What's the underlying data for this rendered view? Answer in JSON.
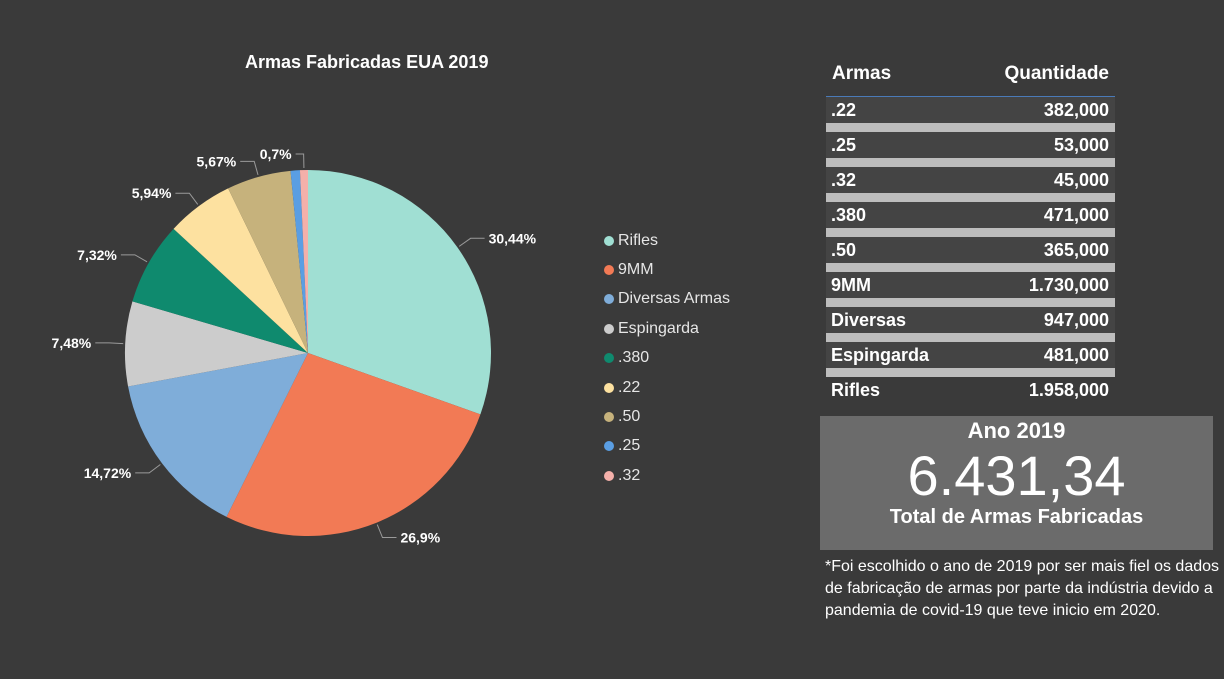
{
  "chart_data": {
    "type": "pie",
    "title": "Armas Fabricadas EUA 2019",
    "slices": [
      {
        "name": "Rifles",
        "value": 30.44,
        "label": "30,44%",
        "color": "#a0dfd3"
      },
      {
        "name": "9MM",
        "value": 26.9,
        "label": "26,9%",
        "color": "#f27a55"
      },
      {
        "name": "Diversas Armas",
        "value": 14.72,
        "label": "14,72%",
        "color": "#7fadd9"
      },
      {
        "name": "Espingarda",
        "value": 7.48,
        "label": "7,48%",
        "color": "#cccccc"
      },
      {
        "name": ".380",
        "value": 7.32,
        "label": "7,32%",
        "color": "#0f8a6e"
      },
      {
        "name": ".22",
        "value": 5.94,
        "label": "5,94%",
        "color": "#fde1a0"
      },
      {
        "name": ".50",
        "value": 5.67,
        "label": "5,67%",
        "color": "#c6b27c"
      },
      {
        "name": ".25",
        "value": 0.82,
        "label": "",
        "color": "#5a9ee3"
      },
      {
        "name": ".32",
        "value": 0.7,
        "label": "0,7%",
        "color": "#f4b0aa"
      }
    ],
    "legend_position": "right"
  },
  "table": {
    "headers": [
      "Armas",
      "Quantidade"
    ],
    "rows": [
      {
        "arma": ".22",
        "quantidade": "382,000"
      },
      {
        "arma": ".25",
        "quantidade": "53,000"
      },
      {
        "arma": ".32",
        "quantidade": "45,000"
      },
      {
        "arma": ".380",
        "quantidade": "471,000"
      },
      {
        "arma": ".50",
        "quantidade": "365,000"
      },
      {
        "arma": "9MM",
        "quantidade": "1.730,000"
      },
      {
        "arma": "Diversas",
        "quantidade": "947,000"
      },
      {
        "arma": "Espingarda",
        "quantidade": "481,000"
      },
      {
        "arma": "Rifles",
        "quantidade": "1.958,000"
      }
    ]
  },
  "total": {
    "year_label": "Ano 2019",
    "value": "6.431,34",
    "caption": "Total de Armas Fabricadas"
  },
  "footnote": "*Foi escolhido o ano de 2019 por ser mais fiel os dados de fabricação de armas por parte da indústria devido a pandemia de covid-19 que teve inicio em 2020."
}
